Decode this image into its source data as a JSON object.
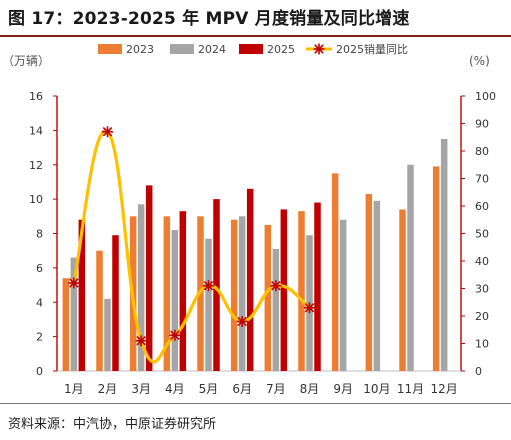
{
  "header": {
    "title": "图 17：2023-2025 年 MPV 月度销量及同比增速"
  },
  "footer": {
    "source": "资料来源：中汽协，中原证券研究所"
  },
  "colors": {
    "2023": "#ED7D31",
    "2024": "#A5A5A5",
    "2025": "#C00000",
    "yoy_line": "#FFC000",
    "yoy_marker": "#C00000",
    "left_axis": "#C00000",
    "right_axis": "#C00000",
    "title_rule": "#8A1C1C"
  },
  "chart_data": {
    "type": "bar",
    "categories": [
      "1月",
      "2月",
      "3月",
      "4月",
      "5月",
      "6月",
      "7月",
      "8月",
      "9月",
      "10月",
      "11月",
      "12月"
    ],
    "series": [
      {
        "name": "2023",
        "axis": "left",
        "values": [
          5.4,
          7.0,
          9.0,
          9.0,
          9.0,
          8.8,
          8.5,
          9.3,
          11.5,
          10.3,
          9.4,
          11.9
        ]
      },
      {
        "name": "2024",
        "axis": "left",
        "values": [
          6.6,
          4.2,
          9.7,
          8.2,
          7.7,
          9.0,
          7.1,
          7.9,
          8.8,
          9.9,
          12.0,
          13.5
        ]
      },
      {
        "name": "2025",
        "axis": "left",
        "values": [
          8.8,
          7.9,
          10.8,
          9.3,
          10.0,
          10.6,
          9.4,
          9.8,
          null,
          null,
          null,
          null
        ]
      },
      {
        "name": "2025销量同比",
        "type": "line",
        "smooth": true,
        "axis": "right",
        "values": [
          32,
          87,
          11,
          13,
          31,
          18,
          31,
          23,
          null,
          null,
          null,
          null
        ]
      }
    ],
    "y_left": {
      "unit_label": "（万辆）",
      "range": [
        0,
        16
      ],
      "ticks": [
        "0",
        "2",
        "4",
        "6",
        "8",
        "10",
        "12",
        "14",
        "16"
      ]
    },
    "y_right": {
      "unit_label": "(%)",
      "range": [
        0,
        100
      ],
      "ticks": [
        "0",
        "10",
        "20",
        "30",
        "40",
        "50",
        "60",
        "70",
        "80",
        "90",
        "100"
      ]
    },
    "legend": {
      "placement": "top",
      "items": [
        "2023",
        "2024",
        "2025",
        "2025销量同比"
      ]
    },
    "grid": false
  }
}
